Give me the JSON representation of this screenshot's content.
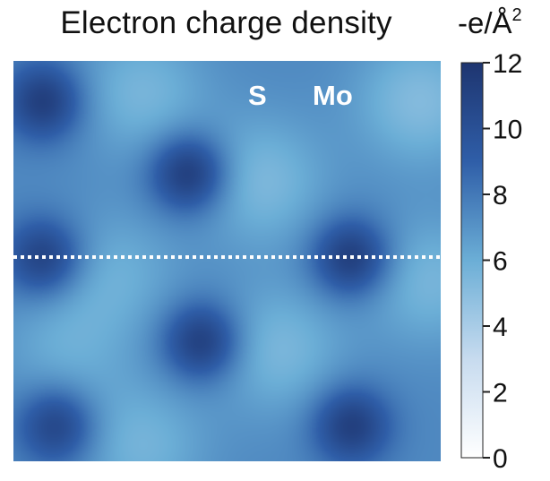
{
  "chart_data": {
    "type": "heatmap",
    "title": "Electron charge density",
    "colorbar": {
      "label_prefix": "-e/Å",
      "label_exponent": "2",
      "min": 0,
      "max": 12,
      "ticks": [
        0,
        2,
        4,
        6,
        8,
        10,
        12
      ],
      "tick_labels": [
        "0",
        "2",
        "4",
        "6",
        "8",
        "10",
        "12"
      ],
      "colormap": [
        "#ffffff",
        "#c7dbef",
        "#6baed6",
        "#2f5ea8",
        "#1e3570"
      ]
    },
    "annotations": [
      {
        "text": "S",
        "color": "#ffffff"
      },
      {
        "text": "Mo",
        "color": "#ffffff"
      }
    ],
    "line_profile": {
      "style": "dotted",
      "color": "#ffffff",
      "y_fraction": 0.49
    },
    "background_value": 7.4,
    "grid": false,
    "maxima_fraction": [
      {
        "x": 0.07,
        "y": 0.1,
        "value": 11.4
      },
      {
        "x": 0.41,
        "y": 0.28,
        "value": 11.8
      },
      {
        "x": 0.07,
        "y": 0.49,
        "value": 11.2
      },
      {
        "x": 0.79,
        "y": 0.49,
        "value": 11.6
      },
      {
        "x": 0.44,
        "y": 0.7,
        "value": 11.5
      },
      {
        "x": 0.1,
        "y": 0.91,
        "value": 11.0
      },
      {
        "x": 0.79,
        "y": 0.91,
        "value": 11.3
      }
    ],
    "minima_fraction": [
      {
        "x": 0.3,
        "y": 0.08,
        "value": 5.6
      },
      {
        "x": 0.58,
        "y": 0.3,
        "value": 5.4
      },
      {
        "x": 0.95,
        "y": 0.1,
        "value": 5.2
      },
      {
        "x": 0.24,
        "y": 0.53,
        "value": 6.0
      },
      {
        "x": 0.62,
        "y": 0.72,
        "value": 5.5
      },
      {
        "x": 0.3,
        "y": 0.96,
        "value": 5.7
      },
      {
        "x": 0.97,
        "y": 0.55,
        "value": 5.6
      },
      {
        "x": 0.12,
        "y": 0.72,
        "value": 6.1
      }
    ]
  }
}
